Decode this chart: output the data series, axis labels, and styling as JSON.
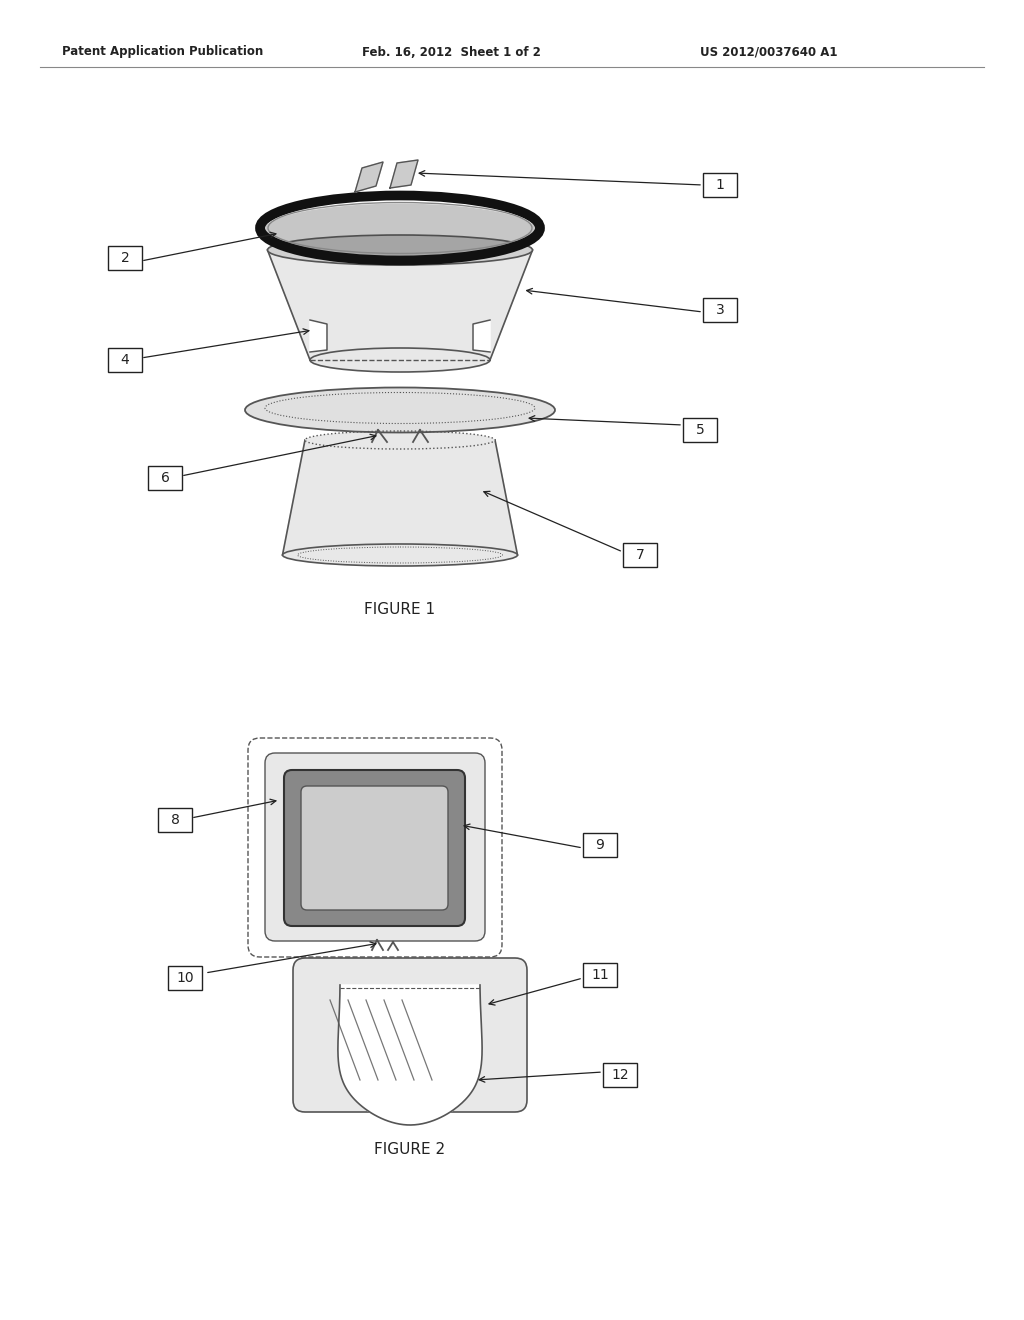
{
  "bg_color": "#ffffff",
  "header_text": "Patent Application Publication",
  "header_date": "Feb. 16, 2012  Sheet 1 of 2",
  "header_patent": "US 2012/0037640 A1",
  "figure1_label": "FIGURE 1",
  "figure2_label": "FIGURE 2",
  "draw_color": "#555555",
  "dark_color": "#111111",
  "label_color": "#222222",
  "light_fill": "#e8e8e8",
  "mid_fill": "#d0d0d0"
}
